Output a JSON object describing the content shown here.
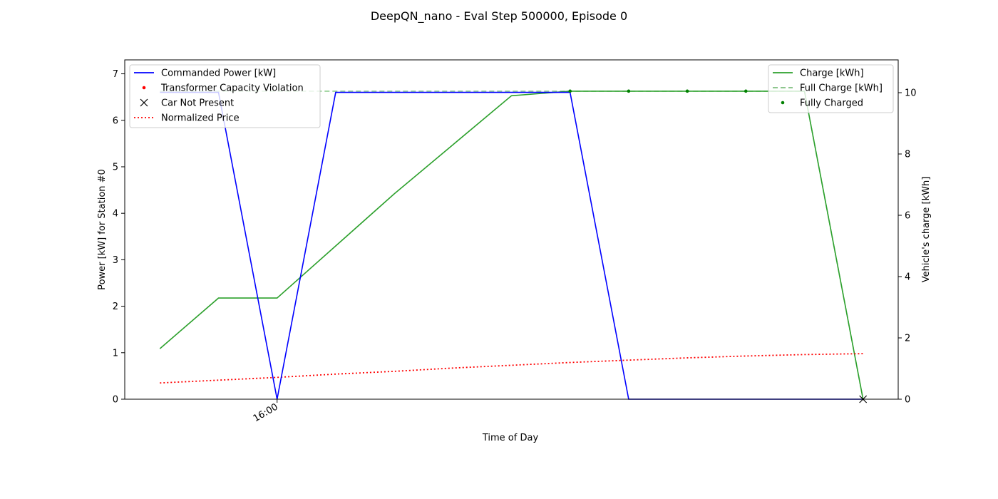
{
  "chart_data": {
    "type": "line",
    "title": "DeepQN_nano - Eval Step 500000, Episode 0",
    "xlabel": "Time of Day",
    "ylabel_left": "Power [kW] for Station #0",
    "ylabel_right": "Vehicle's charge [kWh]",
    "x": [
      0,
      1,
      2,
      3,
      4,
      5,
      6,
      7,
      8,
      9,
      10,
      11,
      12
    ],
    "xlim": [
      -0.6,
      12.6
    ],
    "x_tick_labels": [
      {
        "x": 2,
        "label": "16:00"
      }
    ],
    "ylim_left": [
      0,
      7.3
    ],
    "ylim_right": [
      0,
      11.07
    ],
    "yticks_left": [
      0,
      1,
      2,
      3,
      4,
      5,
      6,
      7
    ],
    "yticks_right": [
      0,
      2,
      4,
      6,
      8,
      10
    ],
    "grid": false,
    "series": [
      {
        "name": "Commanded Power [kW]",
        "axis": "left",
        "style": "solid",
        "color": "#0000ff",
        "values": [
          6.6,
          6.6,
          0,
          6.6,
          6.6,
          6.6,
          6.6,
          6.6,
          0,
          0,
          0,
          0,
          0
        ]
      },
      {
        "name": "Normalized Price",
        "axis": "left",
        "style": "dotted",
        "color": "#ff0000",
        "values": [
          0.35,
          0.41,
          0.47,
          0.54,
          0.6,
          0.67,
          0.73,
          0.79,
          0.84,
          0.89,
          0.93,
          0.96,
          0.98
        ]
      },
      {
        "name": "Charge [kWh]",
        "axis": "right",
        "style": "solid",
        "color": "#2ca02c",
        "values": [
          1.65,
          3.3,
          3.3,
          5.0,
          6.7,
          8.3,
          9.9,
          10.05,
          10.05,
          10.05,
          10.05,
          10.05,
          0
        ]
      },
      {
        "name": "Full Charge [kWh]",
        "axis": "right",
        "style": "dashed",
        "color": "#2ca02c",
        "values": [
          10.05,
          10.05,
          10.05,
          10.05,
          10.05,
          10.05,
          10.05,
          10.05,
          10.05,
          10.05,
          10.05,
          10.05,
          0
        ]
      },
      {
        "name": "Transformer Capacity Violation",
        "axis": "left",
        "style": "markers",
        "marker": "dot",
        "color": "#ff0000",
        "points": []
      },
      {
        "name": "Car Not Present",
        "axis": "left",
        "style": "markers",
        "marker": "x",
        "color": "#000000",
        "points": [
          [
            12,
            0
          ]
        ]
      },
      {
        "name": "Fully Charged",
        "axis": "right",
        "style": "markers",
        "marker": "dot",
        "color": "#008000",
        "points": [
          [
            7,
            10.05
          ],
          [
            8,
            10.05
          ],
          [
            9,
            10.05
          ],
          [
            10,
            10.05
          ]
        ]
      }
    ],
    "legend_left": {
      "placement": "upper left",
      "entries": [
        {
          "label": "Commanded Power [kW]",
          "kind": "line-solid",
          "color": "#0000ff"
        },
        {
          "label": "Transformer Capacity Violation",
          "kind": "dot",
          "color": "#ff0000"
        },
        {
          "label": "Car Not Present",
          "kind": "x",
          "color": "#000000"
        },
        {
          "label": "Normalized Price",
          "kind": "line-dotted",
          "color": "#ff0000"
        }
      ]
    },
    "legend_right": {
      "placement": "upper right",
      "entries": [
        {
          "label": "Charge [kWh]",
          "kind": "line-solid",
          "color": "#2ca02c"
        },
        {
          "label": "Full Charge [kWh]",
          "kind": "line-dashed",
          "color": "#7fbf7f"
        },
        {
          "label": "Fully Charged",
          "kind": "dot",
          "color": "#008000"
        }
      ]
    }
  }
}
